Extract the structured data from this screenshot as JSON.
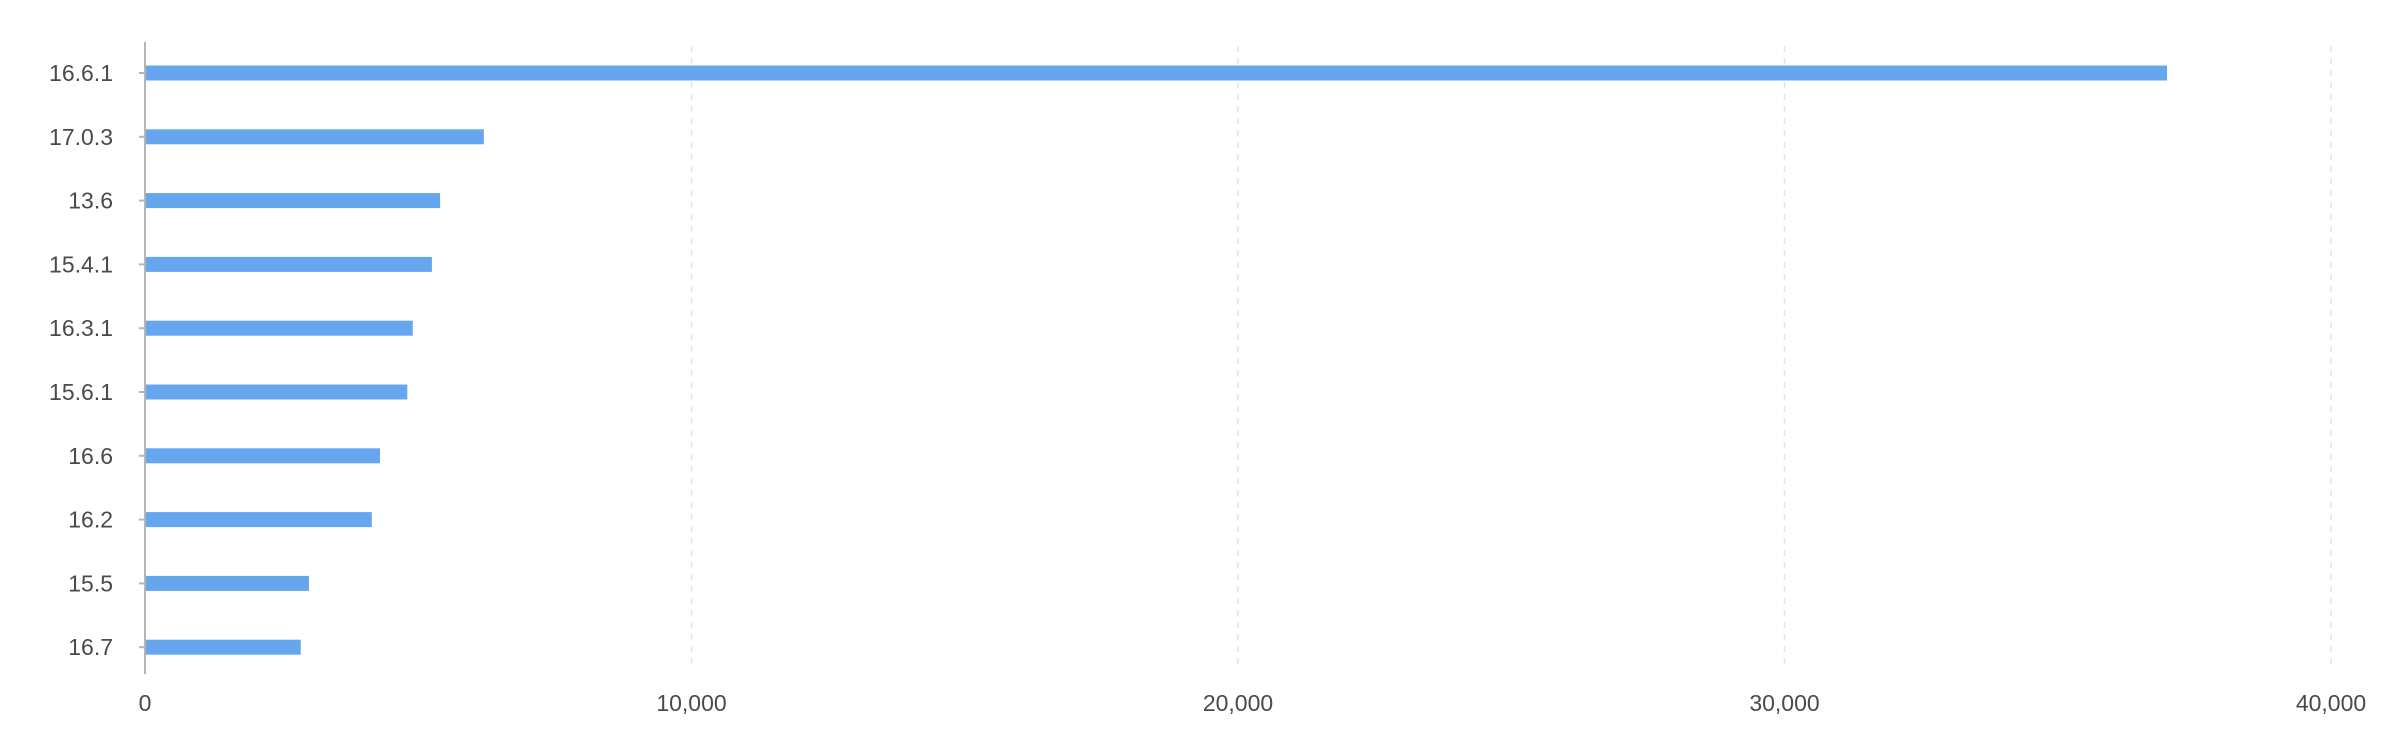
{
  "chart_data": {
    "type": "bar",
    "orientation": "horizontal",
    "title": "",
    "xlabel": "",
    "ylabel": "",
    "categories": [
      "16.6.1",
      "17.0.3",
      "13.6",
      "15.4.1",
      "16.3.1",
      "15.6.1",
      "16.6",
      "16.2",
      "15.5",
      "16.7"
    ],
    "values": [
      37000,
      6200,
      5400,
      5250,
      4900,
      4800,
      4300,
      4150,
      3000,
      2850
    ],
    "xlim": [
      0,
      40000
    ],
    "x_ticks": [
      0,
      10000,
      20000,
      30000,
      40000
    ],
    "x_tick_labels": [
      "0",
      "10,000",
      "20,000",
      "30,000",
      "40,000"
    ],
    "grid": "vertical-dashed",
    "legend": "none",
    "bar_color": "#66a6ee",
    "grid_color": "#e3e3e3",
    "axis_color": "#b5b5b5"
  }
}
